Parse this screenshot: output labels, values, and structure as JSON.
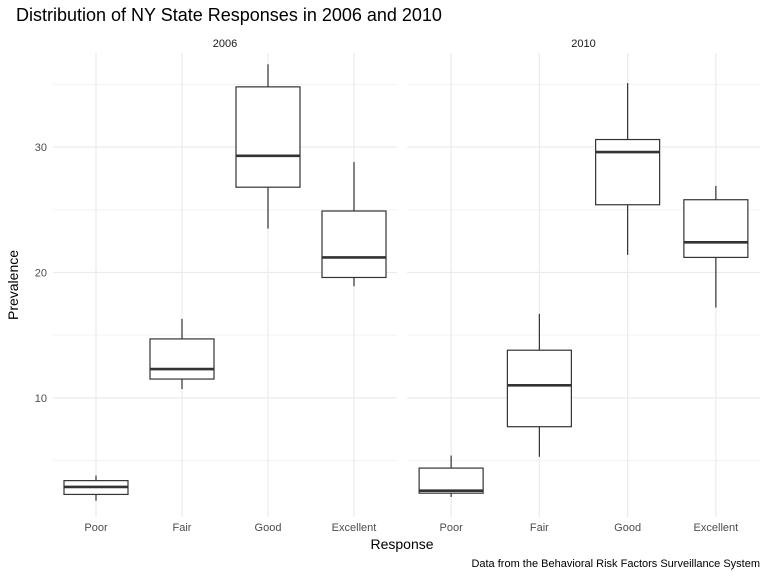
{
  "chart_data": {
    "type": "boxplot",
    "title": "Distribution of NY State Responses in 2006 and 2010",
    "xlabel": "Response",
    "ylabel": "Prevalence",
    "caption": "Data from the Behavioral Risk Factors Surveillance System",
    "categories": [
      "Poor",
      "Fair",
      "Good",
      "Excellent"
    ],
    "ylim": [
      0.5,
      37.5
    ],
    "yticks": [
      10,
      20,
      30
    ],
    "grid": true,
    "box_color": "#333333",
    "grid_major_color": "#ebebeb",
    "grid_minor_color": "#f3f3f3",
    "panels": [
      {
        "label": "2006",
        "boxes": [
          {
            "category": "Poor",
            "min": 1.8,
            "q1": 2.3,
            "median": 2.9,
            "q3": 3.4,
            "max": 3.8
          },
          {
            "category": "Fair",
            "min": 10.7,
            "q1": 11.5,
            "median": 12.3,
            "q3": 14.7,
            "max": 16.3
          },
          {
            "category": "Good",
            "min": 23.5,
            "q1": 26.8,
            "median": 29.3,
            "q3": 34.8,
            "max": 36.6
          },
          {
            "category": "Excellent",
            "min": 18.9,
            "q1": 19.6,
            "median": 21.2,
            "q3": 24.9,
            "max": 28.8
          }
        ]
      },
      {
        "label": "2010",
        "boxes": [
          {
            "category": "Poor",
            "min": 2.1,
            "q1": 2.4,
            "median": 2.6,
            "q3": 4.4,
            "max": 5.4
          },
          {
            "category": "Fair",
            "min": 5.3,
            "q1": 7.7,
            "median": 11.0,
            "q3": 13.8,
            "max": 16.7
          },
          {
            "category": "Good",
            "min": 21.4,
            "q1": 25.4,
            "median": 29.6,
            "q3": 30.6,
            "max": 35.1
          },
          {
            "category": "Excellent",
            "min": 17.2,
            "q1": 21.2,
            "median": 22.4,
            "q3": 25.8,
            "max": 26.9
          }
        ]
      }
    ]
  }
}
